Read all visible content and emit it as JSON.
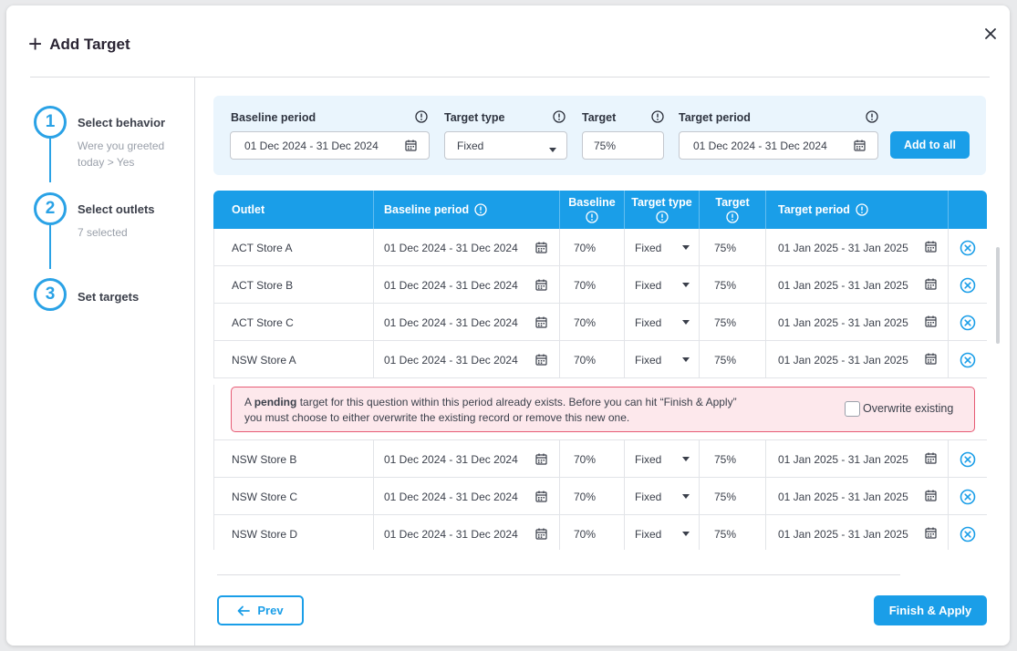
{
  "dialog": {
    "title": "Add Target"
  },
  "steps": [
    {
      "number": "1",
      "label": "Select behavior",
      "sub": [
        "Were you greeted",
        "today > Yes"
      ]
    },
    {
      "number": "2",
      "label": "Select outlets",
      "sub": [
        "7 selected"
      ]
    },
    {
      "number": "3",
      "label": "Set targets",
      "sub": []
    }
  ],
  "filters": {
    "baseline_label": "Baseline period",
    "baseline_value": "01 Dec 2024 - 31 Dec 2024",
    "target_type_label": "Target type",
    "target_type_value": "Fixed",
    "target_label": "Target",
    "target_value": "75%",
    "target_period_label": "Target period",
    "target_period_value": "01 Dec 2024 - 31 Dec 2024",
    "add_all_label": "Add to all"
  },
  "table": {
    "headers": {
      "outlet": "Outlet",
      "baseline_period": "Baseline period",
      "baseline": "Baseline",
      "target_type": "Target type",
      "target": "Target",
      "target_period": "Target period"
    },
    "rows": [
      {
        "outlet": "ACT Store A",
        "baseline_period": "01 Dec 2024 - 31 Dec 2024",
        "baseline": "70%",
        "target_type": "Fixed",
        "target": "75%",
        "target_period": "01 Jan 2025 - 31 Jan 2025"
      },
      {
        "outlet": "ACT Store B",
        "baseline_period": "01 Dec 2024 - 31 Dec 2024",
        "baseline": "70%",
        "target_type": "Fixed",
        "target": "75%",
        "target_period": "01 Jan 2025 - 31 Jan 2025"
      },
      {
        "outlet": "ACT Store C",
        "baseline_period": "01 Dec 2024 - 31 Dec 2024",
        "baseline": "70%",
        "target_type": "Fixed",
        "target": "75%",
        "target_period": "01 Jan 2025 - 31 Jan 2025"
      },
      {
        "outlet": "NSW Store A",
        "baseline_period": "01 Dec 2024 - 31 Dec 2024",
        "baseline": "70%",
        "target_type": "Fixed",
        "target": "75%",
        "target_period": "01 Jan 2025 - 31 Jan 2025"
      },
      {
        "outlet": "NSW Store B",
        "baseline_period": "01 Dec 2024 - 31 Dec 2024",
        "baseline": "70%",
        "target_type": "Fixed",
        "target": "75%",
        "target_period": "01 Jan 2025 - 31 Jan 2025"
      },
      {
        "outlet": "NSW Store C",
        "baseline_period": "01 Dec 2024 - 31 Dec 2024",
        "baseline": "70%",
        "target_type": "Fixed",
        "target": "75%",
        "target_period": "01 Jan 2025 - 31 Jan 2025"
      },
      {
        "outlet": "NSW Store D",
        "baseline_period": "01 Dec 2024 - 31 Dec 2024",
        "baseline": "70%",
        "target_type": "Fixed",
        "target": "75%",
        "target_period": "01 Jan 2025 - 31 Jan 2025"
      }
    ]
  },
  "alert": {
    "text_before": "A ",
    "text_bold": "pending",
    "text_after": " target for this question within this period already exists. Before you can hit “Finish & Apply” you must choose to either overwrite the existing record or remove this new one.",
    "checkbox_label": "Overwrite existing"
  },
  "footer": {
    "prev_label": "Prev",
    "finish_label": "Finish & Apply"
  },
  "colors": {
    "accent": "#1a9ee8",
    "alert_bg": "#fde8ec",
    "alert_border": "#e65b74"
  }
}
